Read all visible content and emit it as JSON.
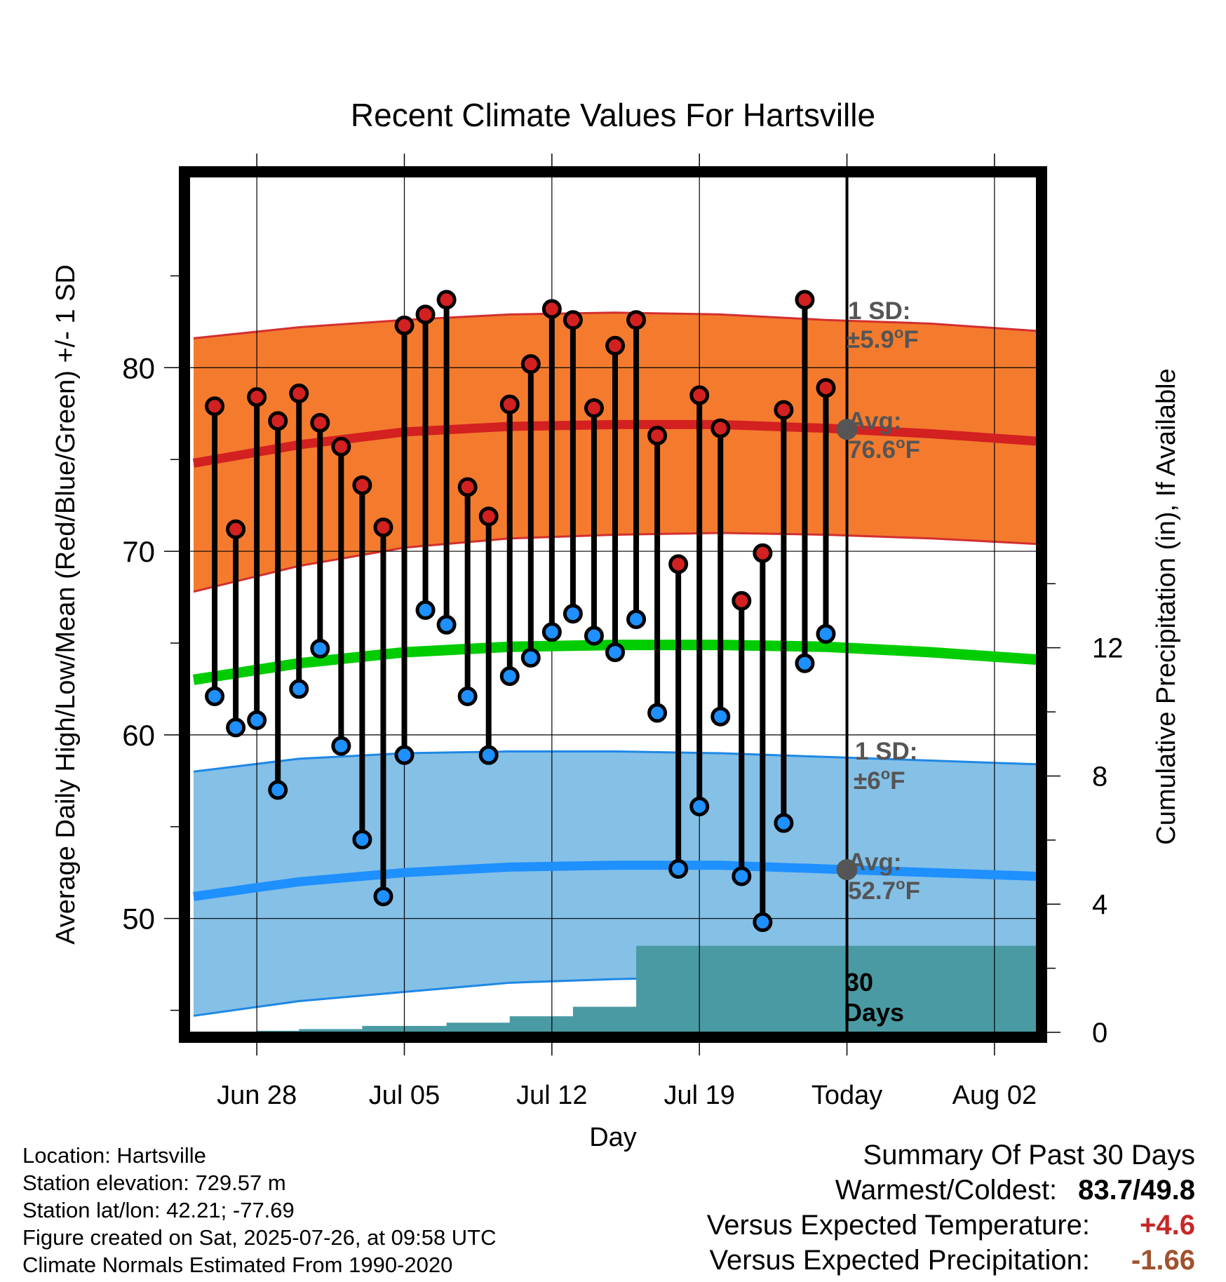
{
  "chart_data": {
    "type": "line",
    "title": "Recent Climate Values For Hartsville",
    "xlabel": "Day",
    "ylabel": "Average Daily High/Low/Mean (Red/Blue/Green) +/- 1 SD",
    "y2label": "Cumulative Precipitation (in), If Available",
    "x_ticks": [
      "Jun 28",
      "Jul 05",
      "Jul 12",
      "Jul 19",
      "Today",
      "Aug 02"
    ],
    "x_tick_days": [
      3,
      10,
      17,
      24,
      31,
      38
    ],
    "xlim": [
      -0.2,
      40.0
    ],
    "ylim": [
      43.8,
      90.4
    ],
    "y_ticks": [
      50,
      60,
      70,
      80
    ],
    "y2lim": [
      0,
      26.7
    ],
    "y2_ticks": [
      0,
      4,
      8,
      12
    ],
    "grid": true,
    "today_index": 31,
    "curve_days": [
      0,
      5,
      10,
      15,
      20,
      25,
      30,
      35,
      40
    ],
    "normal_high": [
      74.8,
      75.8,
      76.5,
      76.8,
      76.9,
      76.9,
      76.7,
      76.4,
      76.0
    ],
    "normal_high_upper": [
      81.6,
      82.2,
      82.6,
      82.9,
      83.0,
      82.9,
      82.6,
      82.4,
      82.0
    ],
    "normal_high_lower": [
      67.8,
      69.2,
      70.2,
      70.7,
      70.9,
      71.0,
      70.9,
      70.7,
      70.4
    ],
    "normal_mean": [
      63.0,
      63.9,
      64.5,
      64.8,
      64.9,
      64.9,
      64.8,
      64.5,
      64.1
    ],
    "normal_low": [
      51.2,
      52.0,
      52.5,
      52.8,
      52.9,
      52.9,
      52.7,
      52.5,
      52.3
    ],
    "normal_low_upper": [
      58.0,
      58.7,
      59.0,
      59.1,
      59.1,
      59.0,
      58.8,
      58.6,
      58.4
    ],
    "normal_low_lower": [
      44.7,
      45.5,
      46.0,
      46.5,
      46.7,
      46.8,
      46.8,
      46.8,
      46.8
    ],
    "precip_days": [
      0,
      2,
      3,
      4,
      5,
      6,
      7,
      8,
      9,
      10,
      11,
      12,
      13,
      14,
      15,
      16,
      17,
      18,
      19,
      20,
      21,
      40
    ],
    "precip_in": [
      0,
      0,
      0.05,
      0.05,
      0.1,
      0.1,
      0.1,
      0.2,
      0.2,
      0.2,
      0.2,
      0.3,
      0.3,
      0.3,
      0.5,
      0.5,
      0.5,
      0.8,
      0.8,
      0.8,
      2.7,
      2.7
    ],
    "series": [
      {
        "name": "High",
        "values": [
          77.9,
          71.2,
          78.4,
          77.1,
          78.6,
          77.0,
          75.7,
          73.6,
          71.3,
          82.3,
          82.9,
          83.7,
          73.5,
          71.9,
          78.0,
          80.2,
          83.2,
          82.6,
          77.8,
          81.2,
          82.6,
          76.3,
          69.3,
          78.5,
          76.7,
          67.3,
          69.9,
          77.7,
          83.7,
          78.9
        ]
      },
      {
        "name": "Low",
        "values": [
          62.1,
          60.4,
          60.8,
          57.0,
          62.5,
          64.7,
          59.4,
          54.3,
          51.2,
          58.9,
          66.8,
          66.0,
          62.1,
          58.9,
          63.2,
          64.2,
          65.6,
          66.6,
          65.4,
          64.5,
          66.3,
          61.2,
          52.7,
          56.1,
          61.0,
          52.3,
          49.8,
          55.2,
          63.9,
          65.5
        ]
      }
    ]
  },
  "annotations": {
    "high_sd_line1": "1 SD:",
    "high_sd_line2": "±5.9",
    "high_sd_unit": "F",
    "high_avg_line1": "Avg:",
    "high_avg_line2": "76.6",
    "high_avg_unit": "F",
    "low_sd_line1": "1 SD:",
    "low_sd_line2": "±6",
    "low_sd_unit": "F",
    "low_avg_line1": "Avg:",
    "low_avg_line2": "52.7",
    "low_avg_unit": "F",
    "degree": "o",
    "days_line1": "30",
    "days_line2": "Days"
  },
  "footer": {
    "location": "Location: Hartsville",
    "elevation": "Station elevation: 729.57 m",
    "latlon": "Station lat/lon: 42.21; -77.69",
    "created": "Figure created on Sat, 2025-07-26, at 09:58 UTC",
    "normals": "Climate Normals Estimated From 1990-2020"
  },
  "summary": {
    "title": "Summary Of Past 30 Days",
    "warmest_label": "Warmest/Coldest:",
    "warmest_value": "83.7/49.8",
    "temp_label": "Versus Expected Temperature:",
    "temp_value": "+4.6",
    "precip_label": "Versus Expected Precipitation:",
    "precip_value": "-1.66"
  },
  "colors": {
    "high_band": "#f47b2e",
    "high_band_edge": "#d32f2f",
    "high_line": "#d32020",
    "low_band": "#85c0e6",
    "low_band_edge": "#1e88e5",
    "low_line": "#1e90ff",
    "mean_line": "#00cc00",
    "precip_fill": "#4a9aa3",
    "high_dot": "#d32020",
    "low_dot": "#1e90ff",
    "today_dot": "#555555",
    "annotation_text": "#555555"
  }
}
